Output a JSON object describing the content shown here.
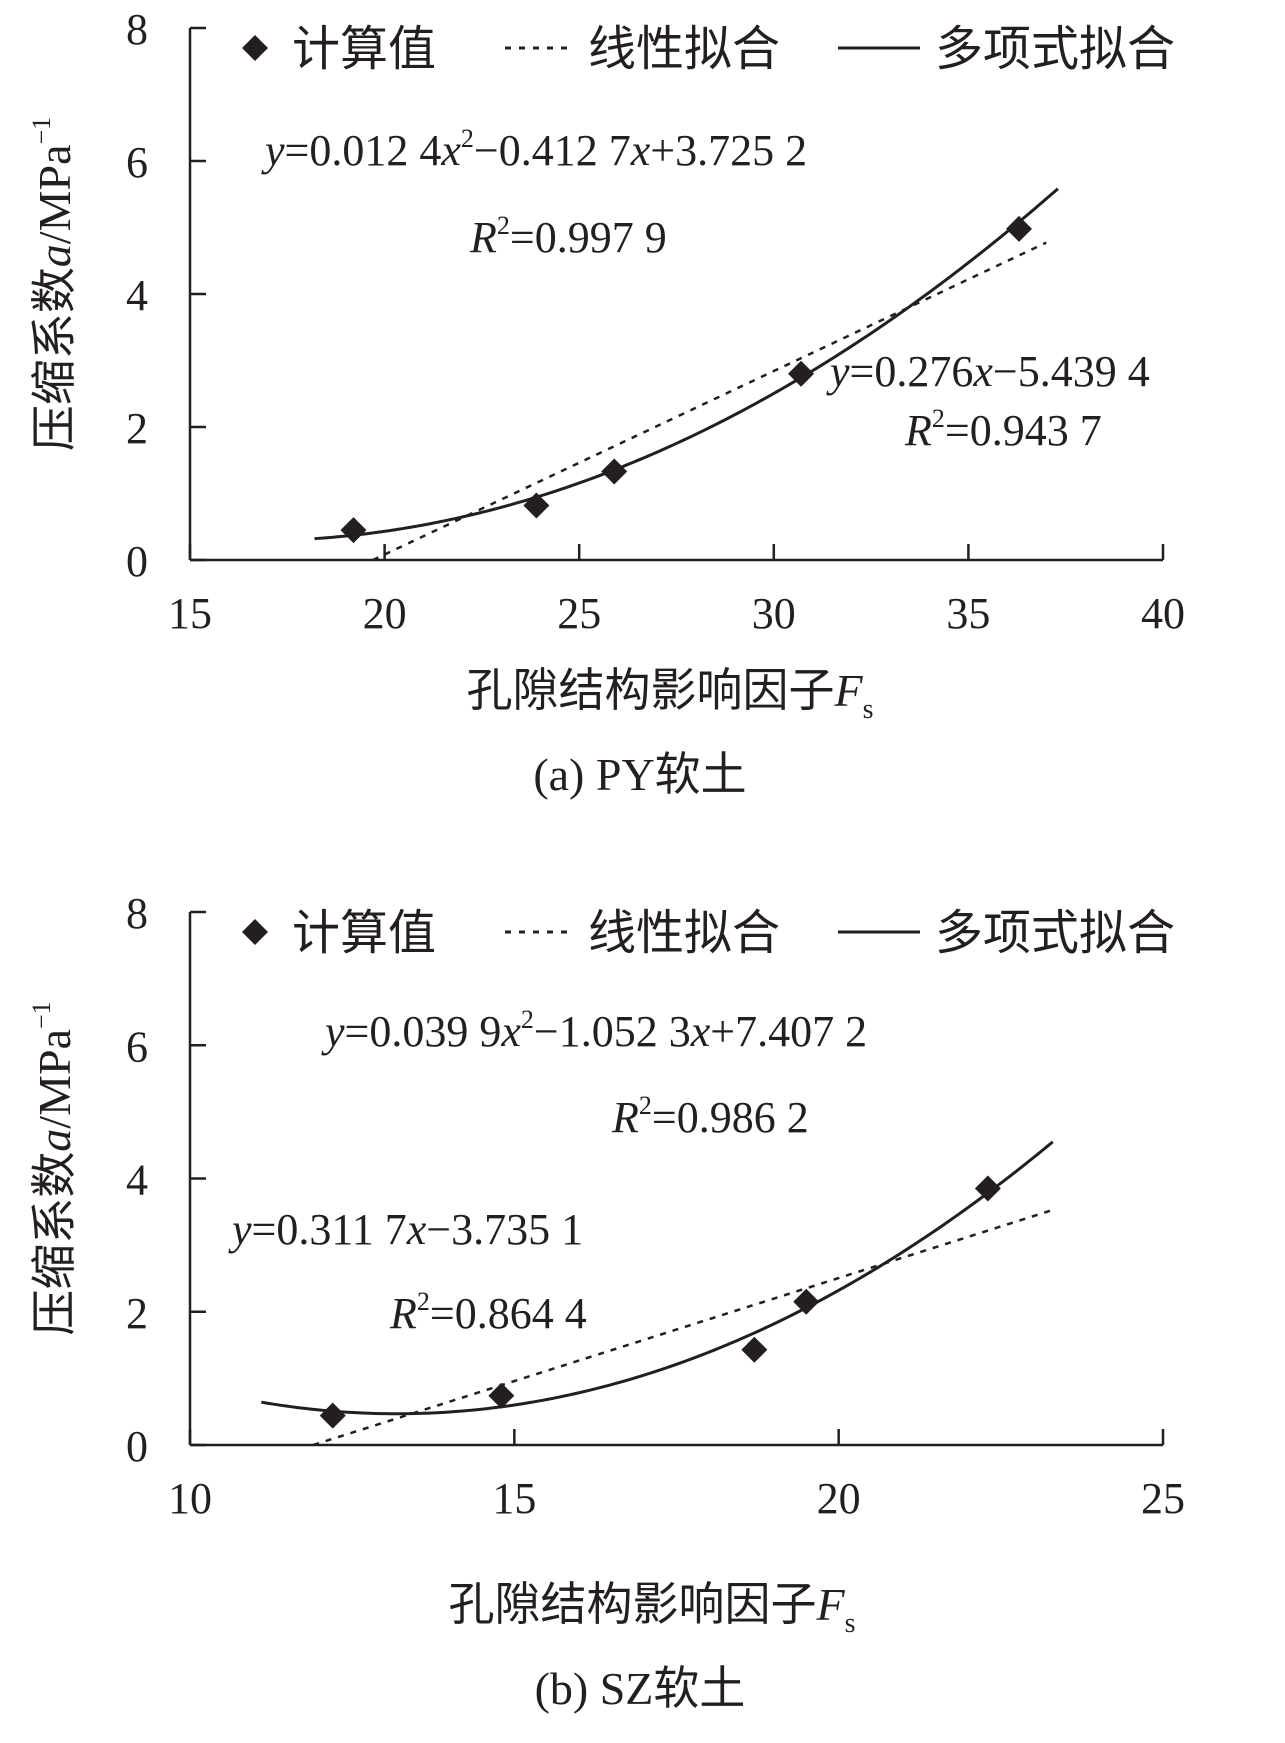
{
  "chart_data": [
    {
      "type": "scatter",
      "caption": "(a) PY软土",
      "xlabel": "孔隙结构影响因子",
      "xlabel_symbol": "F",
      "xlabel_subscript": "s",
      "ylabel": "压缩系数",
      "ylabel_symbol": "a",
      "ylabel_unit": "/MPa",
      "ylabel_exponent": "−1",
      "xlim": [
        15,
        40
      ],
      "ylim": [
        0,
        8
      ],
      "xticks": [
        "15",
        "20",
        "25",
        "30",
        "35",
        "40"
      ],
      "yticks": [
        "0",
        "2",
        "4",
        "6",
        "8"
      ],
      "grid": false,
      "legend_position": "top",
      "legend": [
        "计算值",
        "线性拟合",
        "多项式拟合"
      ],
      "points": [
        {
          "x": 19.2,
          "y": 0.45
        },
        {
          "x": 23.9,
          "y": 0.82
        },
        {
          "x": 25.9,
          "y": 1.33
        },
        {
          "x": 30.7,
          "y": 2.8
        },
        {
          "x": 36.3,
          "y": 4.98
        }
      ],
      "linear_fit": {
        "slope": 0.276,
        "intercept": -5.4394,
        "x_range": [
          19.7,
          37.0
        ]
      },
      "poly_fit": {
        "a": 0.0124,
        "b": -0.4127,
        "c": 3.7252,
        "x_range": [
          18.2,
          37.3
        ]
      },
      "annotations": {
        "poly_eq": {
          "lhs": "y",
          "p1": "=0.012 4",
          "v1": "x",
          "sup": "2",
          "p2": "−0.412 7",
          "v2": "x",
          "p3": "+3.725 2"
        },
        "poly_r2": {
          "lhs": "R",
          "sup": "2",
          "rhs": "=0.997 9"
        },
        "lin_eq": {
          "lhs": "y",
          "p1": "=0.276",
          "v1": "x",
          "p2": "−5.439 4"
        },
        "lin_r2": {
          "lhs": "R",
          "sup": "2",
          "rhs": "=0.943 7"
        }
      }
    },
    {
      "type": "scatter",
      "caption": "(b) SZ软土",
      "xlabel": "孔隙结构影响因子",
      "xlabel_symbol": "F",
      "xlabel_subscript": "s",
      "ylabel": "压缩系数",
      "ylabel_symbol": "a",
      "ylabel_unit": "/MPa",
      "ylabel_exponent": "−1",
      "xlim": [
        10,
        25
      ],
      "ylim": [
        0,
        8
      ],
      "xticks": [
        "10",
        "15",
        "20",
        "25"
      ],
      "yticks": [
        "0",
        "2",
        "4",
        "6",
        "8"
      ],
      "grid": false,
      "legend_position": "top",
      "legend": [
        "计算值",
        "线性拟合",
        "多项式拟合"
      ],
      "points": [
        {
          "x": 12.2,
          "y": 0.44
        },
        {
          "x": 14.8,
          "y": 0.74
        },
        {
          "x": 18.7,
          "y": 1.43
        },
        {
          "x": 19.5,
          "y": 2.15
        },
        {
          "x": 22.3,
          "y": 3.85
        }
      ],
      "linear_fit": {
        "slope": 0.3117,
        "intercept": -3.7351,
        "x_range": [
          11.9,
          23.3
        ]
      },
      "poly_fit": {
        "a": 0.0399,
        "b": -1.0523,
        "c": 7.4072,
        "x_range": [
          11.1,
          23.3
        ]
      },
      "annotations": {
        "poly_eq": {
          "lhs": "y",
          "p1": "=0.039 9",
          "v1": "x",
          "sup": "2",
          "p2": "−1.052 3",
          "v2": "x",
          "p3": "+7.407 2"
        },
        "poly_r2": {
          "lhs": "R",
          "sup": "2",
          "rhs": "=0.986 2"
        },
        "lin_eq": {
          "lhs": "y",
          "p1": "=0.311 7",
          "v1": "x",
          "p2": "−3.735 1"
        },
        "lin_r2": {
          "lhs": "R",
          "sup": "2",
          "rhs": "=0.864 4"
        }
      }
    }
  ]
}
